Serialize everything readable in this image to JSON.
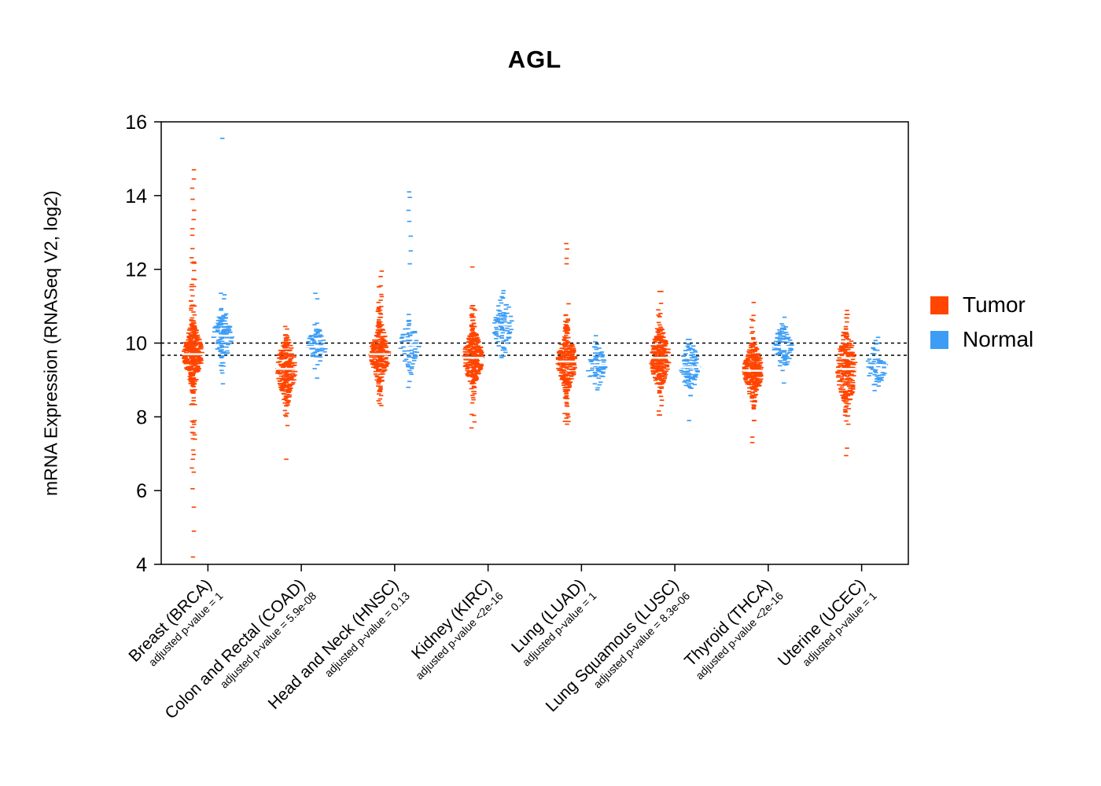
{
  "title": "AGL",
  "y_axis": {
    "label": "mRNA Expression (RNASeq V2, log2)",
    "ticks": [
      4,
      6,
      8,
      10,
      12,
      14,
      16
    ]
  },
  "legend": {
    "items": [
      {
        "label": "Tumor",
        "color": "#FF4500"
      },
      {
        "label": "Normal",
        "color": "#3D9DF5"
      }
    ]
  },
  "chart_data": {
    "type": "scatter",
    "variant": "paired-violin-strip",
    "title": "AGL",
    "ylabel": "mRNA Expression (RNASeq V2, log2)",
    "ylim": [
      4,
      16
    ],
    "grid": false,
    "legend_position": "right",
    "reference_lines": [
      10.0,
      9.67
    ],
    "series": [
      "Tumor",
      "Normal"
    ],
    "series_colors": {
      "Tumor": "#FF4500",
      "Normal": "#3D9DF5"
    },
    "categories": [
      {
        "label": "Breast (BRCA)",
        "pvalue_label": "adjusted p-value = 1",
        "tumor": {
          "median": 9.7,
          "q1": 9.45,
          "q3": 10.0,
          "lo": 4.2,
          "hi": 14.7,
          "n": 300,
          "tail_n": 100,
          "tail_sd": 1.35,
          "extremes": [
            4.2,
            4.9,
            5.55,
            6.05,
            6.5,
            6.85,
            7.1,
            13.1,
            13.35,
            13.6,
            13.9,
            14.2,
            14.45,
            14.7
          ]
        },
        "normal": {
          "median": 10.2,
          "q1": 9.98,
          "q3": 10.45,
          "lo": 8.75,
          "hi": 11.35,
          "n": 110,
          "tail_n": 25,
          "tail_sd": 0.65,
          "extremes": [
            15.55
          ]
        }
      },
      {
        "label": "Colon and Rectal (COAD)",
        "pvalue_label": "adjusted p-value = 5.9e-08",
        "tumor": {
          "median": 9.3,
          "q1": 9.0,
          "q3": 9.6,
          "lo": 7.55,
          "hi": 10.45,
          "n": 210,
          "tail_n": 45,
          "tail_sd": 0.75,
          "extremes": [
            6.85
          ]
        },
        "normal": {
          "median": 9.9,
          "q1": 9.72,
          "q3": 10.08,
          "lo": 9.05,
          "hi": 10.55,
          "n": 60,
          "tail_n": 10,
          "tail_sd": 0.45,
          "extremes": [
            11.2,
            11.35
          ]
        }
      },
      {
        "label": "Head and Neck (HNSC)",
        "pvalue_label": "adjusted p-value = 0.13",
        "tumor": {
          "median": 9.7,
          "q1": 9.45,
          "q3": 9.98,
          "lo": 7.6,
          "hi": 12.3,
          "n": 250,
          "tail_n": 60,
          "tail_sd": 0.95,
          "extremes": []
        },
        "normal": {
          "median": 9.95,
          "q1": 9.75,
          "q3": 10.18,
          "lo": 8.8,
          "hi": 10.9,
          "n": 60,
          "tail_n": 12,
          "tail_sd": 0.55,
          "extremes": [
            12.15,
            12.5,
            12.9,
            13.3,
            13.6,
            13.95,
            14.1
          ]
        }
      },
      {
        "label": "Kidney (KIRC)",
        "pvalue_label": "adjusted p-value <2e-16",
        "tumor": {
          "median": 9.6,
          "q1": 9.35,
          "q3": 9.88,
          "lo": 7.7,
          "hi": 12.1,
          "n": 270,
          "tail_n": 60,
          "tail_sd": 0.95,
          "extremes": []
        },
        "normal": {
          "median": 10.5,
          "q1": 10.22,
          "q3": 10.78,
          "lo": 9.5,
          "hi": 11.5,
          "n": 90,
          "tail_n": 10,
          "tail_sd": 0.5,
          "extremes": []
        }
      },
      {
        "label": "Lung (LUAD)",
        "pvalue_label": "adjusted p-value = 1",
        "tumor": {
          "median": 9.5,
          "q1": 9.25,
          "q3": 9.78,
          "lo": 7.7,
          "hi": 11.6,
          "n": 250,
          "tail_n": 55,
          "tail_sd": 0.9,
          "extremes": [
            12.15,
            12.3,
            12.55,
            12.7
          ]
        },
        "normal": {
          "median": 9.4,
          "q1": 9.2,
          "q3": 9.62,
          "lo": 8.5,
          "hi": 10.2,
          "n": 65,
          "tail_n": 10,
          "tail_sd": 0.45,
          "extremes": []
        }
      },
      {
        "label": "Lung Squamous (LUSC)",
        "pvalue_label": "adjusted p-value = 8.3e-06",
        "tumor": {
          "median": 9.6,
          "q1": 9.32,
          "q3": 9.9,
          "lo": 8.05,
          "hi": 11.4,
          "n": 240,
          "tail_n": 45,
          "tail_sd": 0.8,
          "extremes": []
        },
        "normal": {
          "median": 9.35,
          "q1": 9.12,
          "q3": 9.6,
          "lo": 8.2,
          "hi": 10.1,
          "n": 90,
          "tail_n": 16,
          "tail_sd": 0.55,
          "extremes": [
            7.9
          ]
        }
      },
      {
        "label": "Thyroid (THCA)",
        "pvalue_label": "adjusted p-value <2e-16",
        "tumor": {
          "median": 9.25,
          "q1": 9.0,
          "q3": 9.52,
          "lo": 7.9,
          "hi": 10.75,
          "n": 260,
          "tail_n": 45,
          "tail_sd": 0.75,
          "extremes": [
            7.3,
            7.45,
            11.1
          ]
        },
        "normal": {
          "median": 9.9,
          "q1": 9.7,
          "q3": 10.1,
          "lo": 8.75,
          "hi": 10.7,
          "n": 90,
          "tail_n": 12,
          "tail_sd": 0.5,
          "extremes": []
        }
      },
      {
        "label": "Uterine (UCEC)",
        "pvalue_label": "adjusted p-value = 1",
        "tumor": {
          "median": 9.3,
          "q1": 8.95,
          "q3": 9.72,
          "lo": 7.8,
          "hi": 10.9,
          "n": 220,
          "tail_n": 45,
          "tail_sd": 0.85,
          "extremes": [
            6.95,
            7.15
          ]
        },
        "normal": {
          "median": 9.4,
          "q1": 9.15,
          "q3": 9.62,
          "lo": 8.6,
          "hi": 10.2,
          "n": 55,
          "tail_n": 8,
          "tail_sd": 0.45,
          "extremes": []
        }
      }
    ]
  }
}
